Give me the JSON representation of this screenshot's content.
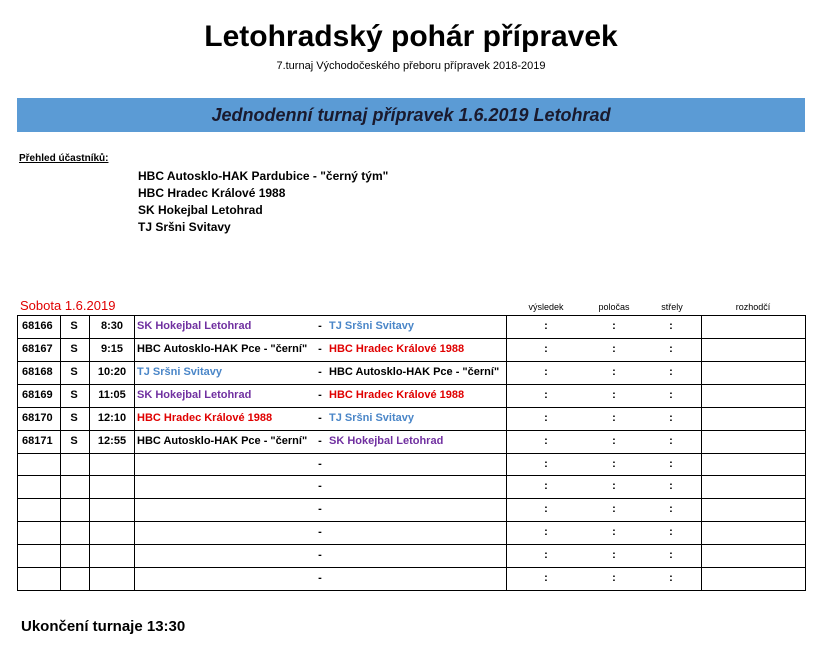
{
  "header": {
    "title": "Letohradský pohár přípravek",
    "subtitle": "7.turnaj Východočeského přeboru přípravek 2018-2019"
  },
  "banner": {
    "text": "Jednodenní turnaj přípravek 1.6.2019 Letohrad",
    "color": "#5b9bd5"
  },
  "participants": {
    "label": "Přehled účastníků:",
    "teams": [
      "HBC Autosklo-HAK Pardubice - \"černý tým\"",
      "HBC Hradec Králové 1988",
      "SK Hokejbal Letohrad",
      "TJ Sršni Svitavy"
    ]
  },
  "schedule": {
    "day": "Sobota 1.6.2019",
    "day_color": "#e00000",
    "columns": {
      "result": "výsledek",
      "half": "poločas",
      "shots": "střely",
      "referee": "rozhodčí"
    },
    "rows": [
      {
        "id": "68166",
        "day": "S",
        "time": "8:30",
        "home": "SK Hokejbal Letohrad",
        "home_color": "#7030a0",
        "separator": "-",
        "away": "TJ Sršni Svitavy",
        "away_color": "#4a86c8",
        "result": ":",
        "half": ":",
        "shots": ":"
      },
      {
        "id": "68167",
        "day": "S",
        "time": "9:15",
        "home": "HBC Autosklo-HAK Pce - \"černí\"",
        "home_color": "#000000",
        "separator": "-",
        "away": "HBC Hradec Králové 1988",
        "away_color": "#e00000",
        "result": ":",
        "half": ":",
        "shots": ":"
      },
      {
        "id": "68168",
        "day": "S",
        "time": "10:20",
        "home": "TJ Sršni Svitavy",
        "home_color": "#4a86c8",
        "separator": "-",
        "away": "HBC Autosklo-HAK Pce - \"černí\"",
        "away_color": "#000000",
        "result": ":",
        "half": ":",
        "shots": ":"
      },
      {
        "id": "68169",
        "day": "S",
        "time": "11:05",
        "home": "SK Hokejbal Letohrad",
        "home_color": "#7030a0",
        "separator": "-",
        "away": "HBC Hradec Králové 1988",
        "away_color": "#e00000",
        "result": ":",
        "half": ":",
        "shots": ":"
      },
      {
        "id": "68170",
        "day": "S",
        "time": "12:10",
        "home": "HBC Hradec Králové 1988",
        "home_color": "#e00000",
        "separator": "-",
        "away": "TJ Sršni Svitavy",
        "away_color": "#4a86c8",
        "result": ":",
        "half": ":",
        "shots": ":"
      },
      {
        "id": "68171",
        "day": "S",
        "time": "12:55",
        "home": "HBC Autosklo-HAK Pce - \"černí\"",
        "home_color": "#000000",
        "separator": "-",
        "away": "SK Hokejbal Letohrad",
        "away_color": "#7030a0",
        "result": ":",
        "half": ":",
        "shots": ":"
      },
      {
        "separator": "-",
        "result": ":",
        "half": ":",
        "shots": ":"
      },
      {
        "separator": "-",
        "result": ":",
        "half": ":",
        "shots": ":"
      },
      {
        "separator": "-",
        "result": ":",
        "half": ":",
        "shots": ":"
      },
      {
        "separator": "-",
        "result": ":",
        "half": ":",
        "shots": ":"
      },
      {
        "separator": "-",
        "result": ":",
        "half": ":",
        "shots": ":"
      },
      {
        "separator": "-",
        "result": ":",
        "half": ":",
        "shots": ":"
      }
    ]
  },
  "footer": {
    "text": "Ukončení turnaje 13:30"
  }
}
